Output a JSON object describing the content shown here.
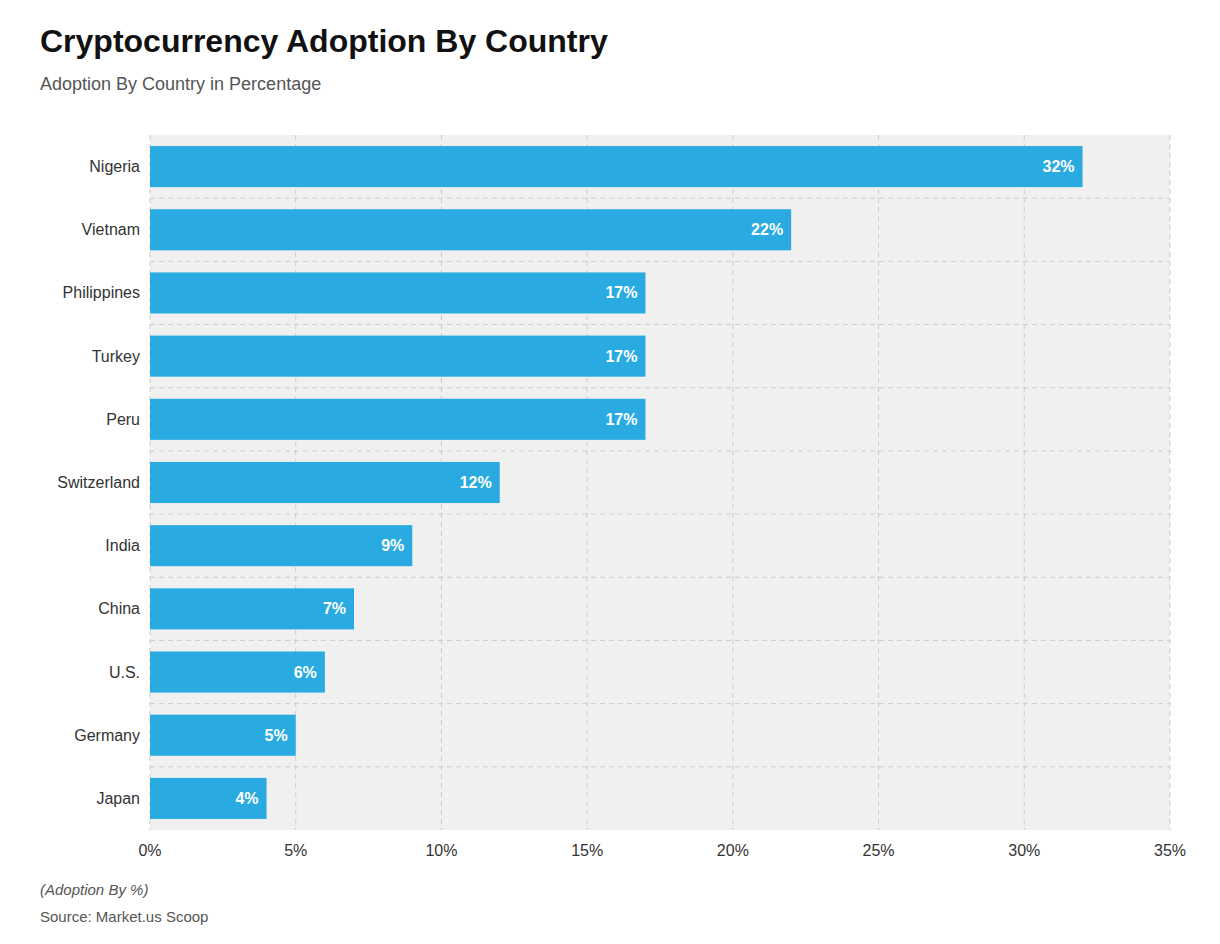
{
  "chart_data": {
    "type": "bar",
    "orientation": "horizontal",
    "title": "Cryptocurrency Adoption By Country",
    "subtitle": "Adoption By Country in Percentage",
    "footnote": "(Adoption By %)",
    "source": "Source: Market.us Scoop",
    "categories": [
      "Nigeria",
      "Vietnam",
      "Philippines",
      "Turkey",
      "Peru",
      "Switzerland",
      "India",
      "China",
      "U.S.",
      "Germany",
      "Japan"
    ],
    "values": [
      32,
      22,
      17,
      17,
      17,
      12,
      9,
      7,
      6,
      5,
      4
    ],
    "value_labels": [
      "32%",
      "22%",
      "17%",
      "17%",
      "17%",
      "12%",
      "9%",
      "7%",
      "6%",
      "5%",
      "4%"
    ],
    "data_labels": true,
    "color": "#29abe2",
    "xlim": [
      0,
      35
    ],
    "xticks": [
      {
        "value": 0,
        "label": "0%"
      },
      {
        "value": 5,
        "label": "5%"
      },
      {
        "value": 10,
        "label": "10%"
      },
      {
        "value": 15,
        "label": "15%"
      },
      {
        "value": 20,
        "label": "20%"
      },
      {
        "value": 25,
        "label": "25%"
      },
      {
        "value": 30,
        "label": "30%"
      },
      {
        "value": 35,
        "label": "35%"
      }
    ],
    "grid": true
  }
}
